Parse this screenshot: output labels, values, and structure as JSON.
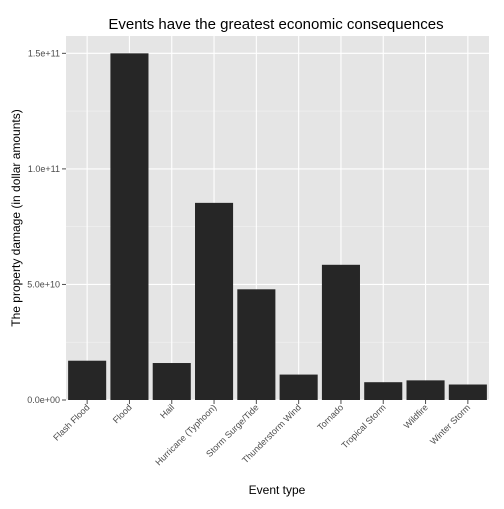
{
  "chart_data": {
    "type": "bar",
    "title": "Events have the greatest economic consequences",
    "xlabel": "Event type",
    "ylabel": "The property damage (in dollar amounts)",
    "categories": [
      "Flash Flood",
      "Flood",
      "Hail",
      "Hurricane (Typhoon)",
      "Storm Surge/Tide",
      "Thunderstorm Wind",
      "Tornado",
      "Tropical Storm",
      "Wildfire",
      "Winter Storm"
    ],
    "values": [
      17000000000,
      150000000000,
      16000000000,
      85300000000,
      47900000000,
      11000000000,
      58500000000,
      7700000000,
      8500000000,
      6700000000
    ],
    "yticks": [
      0,
      50000000000,
      100000000000,
      150000000000
    ],
    "ytick_labels": [
      "0.0e+00",
      "5.0e+10",
      "1.0e+11",
      "1.5e+11"
    ],
    "ylim": [
      0,
      157500000000
    ],
    "grid": true,
    "colors": {
      "panel": "#e5e5e5",
      "grid_major": "#ffffff",
      "grid_minor": "#f2f2f2",
      "bar": "#262626"
    }
  }
}
